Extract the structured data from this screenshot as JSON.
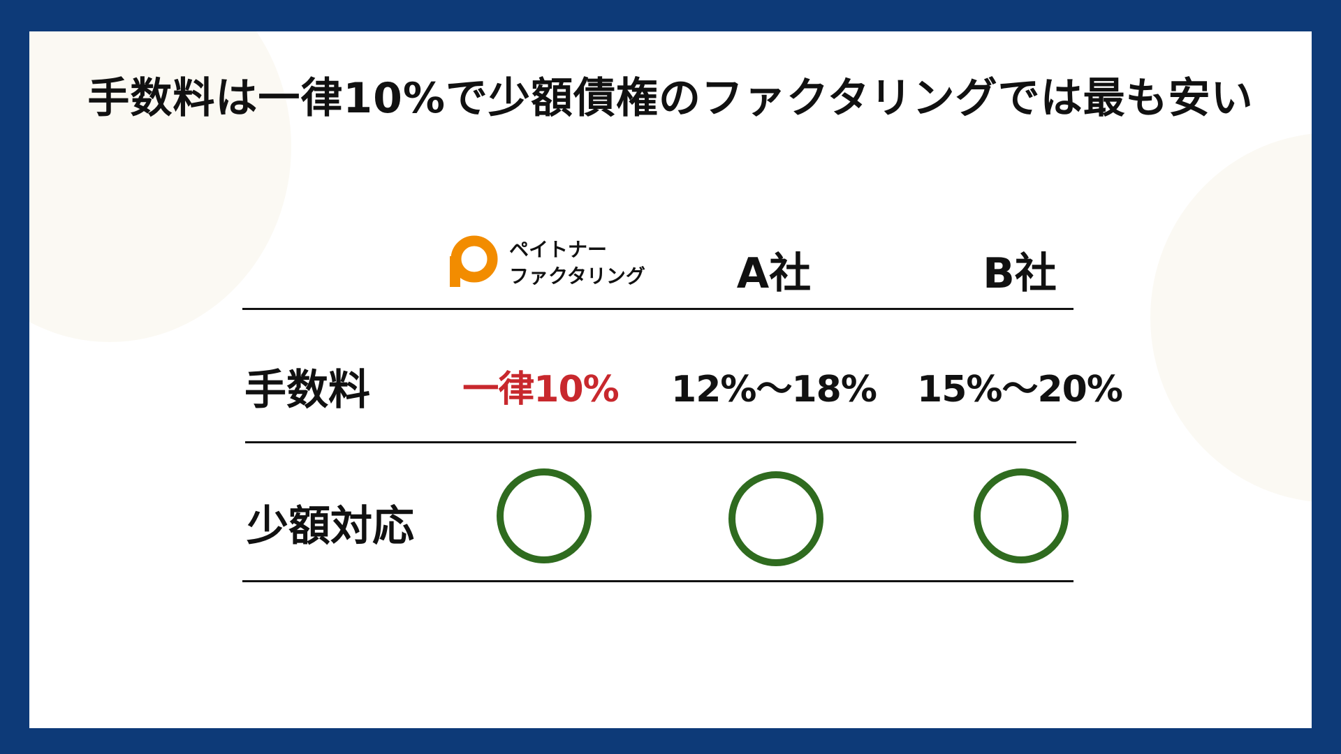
{
  "title": "手数料は一律10%で少額債権のファクタリングでは最も安い",
  "logo": {
    "line1": "ペイトナー",
    "line2": "ファクタリング",
    "brand_color": "#f28c00"
  },
  "columns": [
    "A社",
    "B社"
  ],
  "rows": [
    {
      "label": "手数料",
      "values": [
        "一律10%",
        "12%〜18%",
        "15%〜20%"
      ]
    },
    {
      "label": "少額対応",
      "values": [
        "circle-icon",
        "circle-icon",
        "circle-icon"
      ]
    }
  ],
  "colors": {
    "frame": "#0d3a78",
    "highlight": "#c8282d",
    "circle": "#2f6b1f"
  }
}
